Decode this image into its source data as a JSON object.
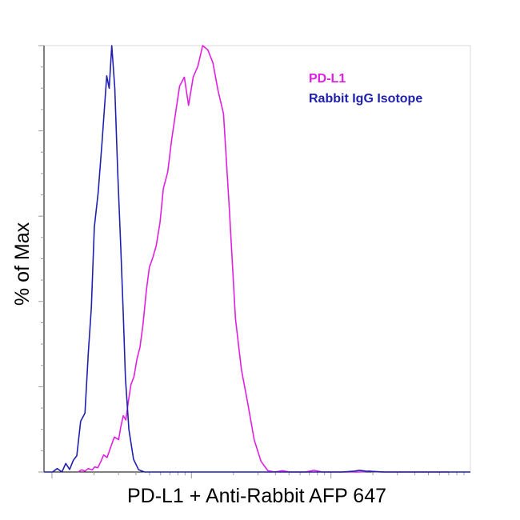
{
  "chart_data": {
    "type": "line",
    "title": "",
    "xlabel": "PD-L1 + Anti-Rabbit AFP 647",
    "ylabel": "% of Max",
    "xscale": "log",
    "xlim": [
      0,
      100
    ],
    "ylim": [
      0,
      100
    ],
    "grid": false,
    "legend_position": "top-right",
    "series": [
      {
        "name": "PD-L1",
        "color": "#e020e0",
        "x": [
          8.0,
          8.8,
          9.6,
          10.4,
          11.3,
          11.9,
          12.6,
          13.3,
          14.0,
          14.8,
          15.7,
          16.5,
          17.5,
          18.0,
          18.6,
          19.2,
          19.8,
          20.4,
          21.1,
          21.8,
          22.5,
          23.2,
          24.0,
          24.7,
          25.5,
          26.3,
          27.2,
          28.0,
          29.0,
          29.9,
          30.9,
          31.8,
          32.9,
          33.9,
          35.0,
          36.1,
          37.2,
          38.4,
          39.6,
          40.8,
          42.1,
          43.5,
          44.9,
          46.3,
          47.8,
          49.3,
          50.9,
          52.5,
          54.1,
          55.9,
          57.6,
          59.4,
          61.3,
          63.3,
          65.3,
          67.3,
          69.5,
          71.7,
          74.0,
          76.3,
          78.7,
          81.2,
          83.8,
          86.5,
          89.2,
          92.1,
          95.0
        ],
        "y": [
          0,
          0.5,
          0.2,
          0.8,
          0.5,
          1.2,
          1.0,
          2.4,
          4.0,
          3.4,
          6.0,
          8.2,
          7.6,
          10.5,
          13.2,
          12.2,
          16.6,
          20.5,
          22.4,
          26.5,
          29.2,
          34.5,
          42.5,
          48.0,
          50.2,
          53.0,
          58.5,
          66.5,
          70.3,
          77.7,
          84.5,
          90.5,
          92.6,
          86.0,
          92.6,
          95.2,
          100.0,
          99.0,
          96.0,
          89.5,
          84.0,
          61.0,
          36.0,
          24.0,
          16.0,
          7.5,
          2.5,
          0.3,
          0,
          0.3,
          0,
          0,
          0,
          0.4,
          0,
          0,
          0,
          0,
          0,
          0.2,
          0,
          0,
          0,
          0,
          0,
          0,
          0
        ]
      },
      {
        "name": "Rabbit IgG Isotope",
        "color": "#2020b0",
        "x": [
          0,
          2.0,
          3.1,
          4.2,
          5.1,
          6.0,
          6.9,
          7.7,
          8.6,
          9.6,
          10.4,
          11.1,
          11.8,
          12.7,
          13.6,
          14.7,
          15.3,
          15.9,
          16.6,
          17.3,
          18.0,
          18.6,
          19.1,
          19.9,
          21.0,
          22.2,
          23.6,
          25.0,
          26.7,
          28.5,
          32.0,
          35.0,
          38.0,
          42.0,
          46.0,
          50.0,
          54.0,
          58.0,
          62.0,
          66.0,
          70.0,
          72.8,
          74.0,
          75.5,
          80.0,
          85.0,
          90.0,
          95.0,
          100.0
        ],
        "y": [
          0,
          0,
          0.8,
          0,
          2.0,
          0.6,
          2.8,
          3.8,
          11.9,
          13.8,
          28.0,
          38.6,
          57.4,
          65.5,
          77.2,
          92.9,
          90.0,
          100.0,
          90.0,
          70.0,
          53.0,
          37.0,
          22.0,
          10.0,
          3.0,
          0.5,
          0,
          0,
          0,
          0,
          0,
          0,
          0,
          0,
          0,
          0,
          0,
          0,
          0,
          0,
          0,
          0.2,
          0.4,
          0.2,
          0,
          0,
          0,
          0,
          0
        ]
      }
    ]
  }
}
